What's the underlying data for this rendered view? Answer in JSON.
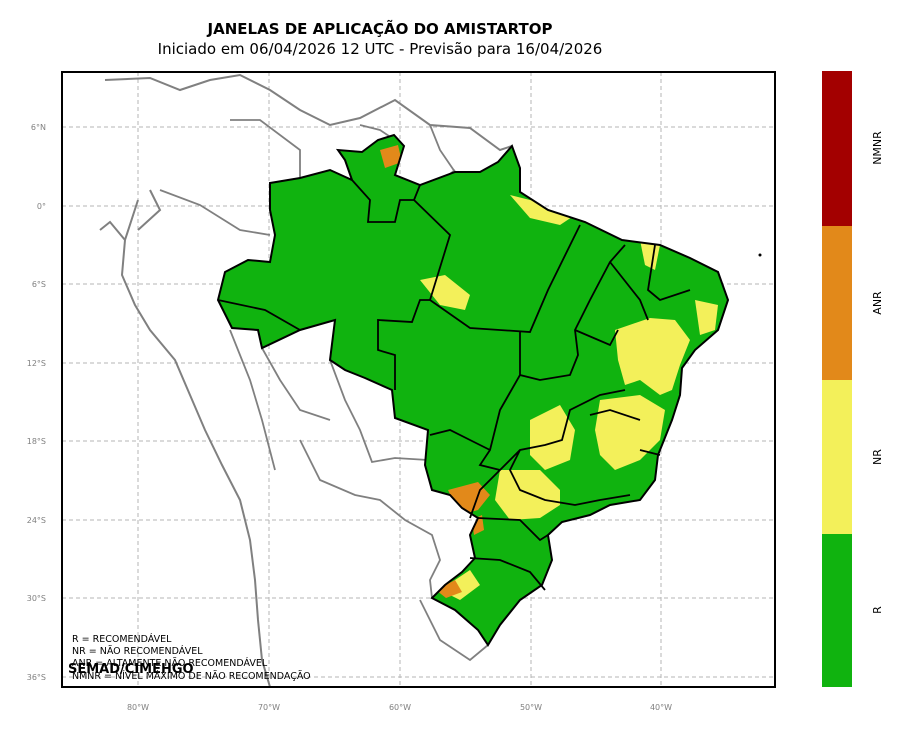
{
  "title": "JANELAS DE APLICAÇÃO DO AMISTARTOP",
  "subtitle": "Iniciado em 06/04/2026 12 UTC - Previsão para 16/04/2026",
  "lat_ticks": [
    "6°N",
    "0°",
    "6°S",
    "12°S",
    "18°S",
    "24°S",
    "30°S",
    "36°S"
  ],
  "lon_ticks": [
    "80°W",
    "70°W",
    "60°W",
    "50°W",
    "40°W"
  ],
  "legend_notes": [
    "R = RECOMENDÁVEL",
    "NR = NÃO RECOMENDÁVEL",
    "ANR = ALTAMENTE NÃO RECOMENDÁVEL",
    "NMNR = NÍVEL MÁXIMO DE NÃO RECOMENDAÇÃO"
  ],
  "credit": "SEMAD/CIMEHGO",
  "colorbar": [
    {
      "label": "NMNR",
      "color": "#a30000"
    },
    {
      "label": "ANR",
      "color": "#e2891a"
    },
    {
      "label": "NR",
      "color": "#f3f05a"
    },
    {
      "label": "R",
      "color": "#10b30f"
    }
  ]
}
